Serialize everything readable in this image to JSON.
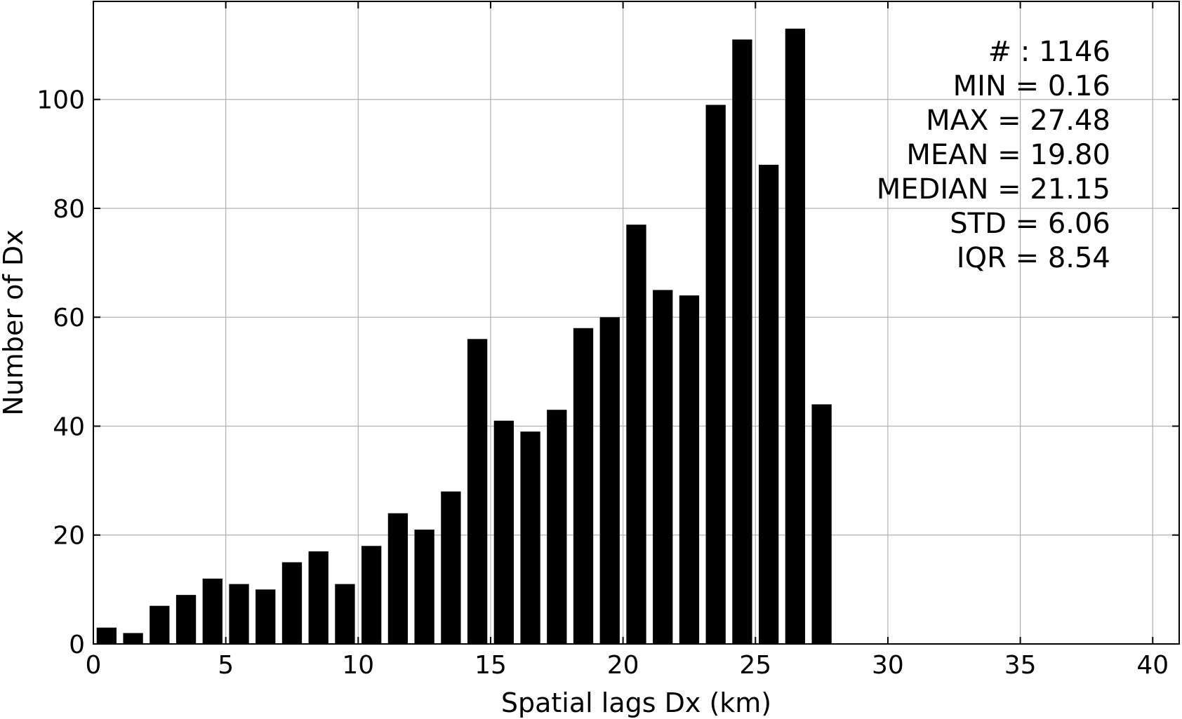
{
  "chart_data": {
    "type": "bar",
    "title": "",
    "xlabel": "Spatial lags Dx (km)",
    "ylabel": "Number of Dx",
    "xlim": [
      0,
      41
    ],
    "ylim": [
      0,
      118
    ],
    "xticks": [
      0,
      5,
      10,
      15,
      20,
      25,
      30,
      35,
      40
    ],
    "yticks": [
      0,
      20,
      40,
      60,
      80,
      100
    ],
    "grid": true,
    "bar_color": "#000000",
    "grid_color": "#b0b0b0",
    "bin_width": 1,
    "bars": [
      {
        "x": 0.5,
        "value": 3
      },
      {
        "x": 1.5,
        "value": 2
      },
      {
        "x": 2.5,
        "value": 7
      },
      {
        "x": 3.5,
        "value": 9
      },
      {
        "x": 4.5,
        "value": 12
      },
      {
        "x": 5.5,
        "value": 11
      },
      {
        "x": 6.5,
        "value": 10
      },
      {
        "x": 7.5,
        "value": 15
      },
      {
        "x": 8.5,
        "value": 17
      },
      {
        "x": 9.5,
        "value": 11
      },
      {
        "x": 10.5,
        "value": 18
      },
      {
        "x": 11.5,
        "value": 24
      },
      {
        "x": 12.5,
        "value": 21
      },
      {
        "x": 13.5,
        "value": 28
      },
      {
        "x": 14.5,
        "value": 56
      },
      {
        "x": 15.5,
        "value": 41
      },
      {
        "x": 16.5,
        "value": 39
      },
      {
        "x": 17.5,
        "value": 43
      },
      {
        "x": 18.5,
        "value": 58
      },
      {
        "x": 19.5,
        "value": 60
      },
      {
        "x": 20.5,
        "value": 77
      },
      {
        "x": 21.5,
        "value": 65
      },
      {
        "x": 22.5,
        "value": 64
      },
      {
        "x": 23.5,
        "value": 99
      },
      {
        "x": 24.5,
        "value": 111
      },
      {
        "x": 25.5,
        "value": 88
      },
      {
        "x": 26.5,
        "value": 113
      },
      {
        "x": 27.5,
        "value": 44
      }
    ],
    "annotations": [
      "# : 1146",
      "MIN = 0.16",
      "MAX =  27.48",
      "MEAN = 19.80",
      "MEDIAN = 21.15",
      "STD = 6.06",
      "IQR = 8.54"
    ]
  }
}
